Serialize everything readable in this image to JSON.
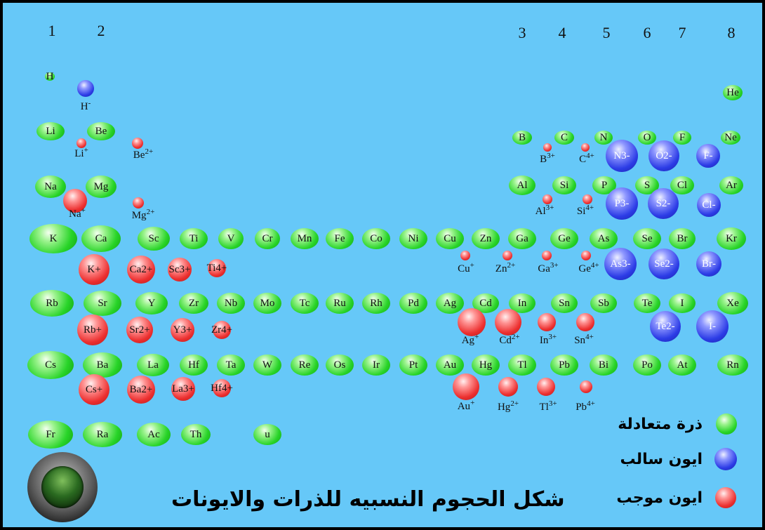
{
  "group_numbers": [
    "1",
    "2",
    "3",
    "4",
    "5",
    "6",
    "7",
    "8"
  ],
  "atoms": [
    "H",
    "He",
    "Li",
    "Be",
    "B",
    "C",
    "N",
    "O",
    "F",
    "Ne",
    "Na",
    "Mg",
    "Al",
    "Si",
    "P",
    "S",
    "Cl",
    "Ar",
    "K",
    "Ca",
    "Sc",
    "Ti",
    "V",
    "Cr",
    "Mn",
    "Fe",
    "Co",
    "Ni",
    "Cu",
    "Zn",
    "Ga",
    "Ge",
    "As",
    "Se",
    "Br",
    "Kr",
    "Rb",
    "Sr",
    "Y",
    "Zr",
    "Nb",
    "Mo",
    "Tc",
    "Ru",
    "Rh",
    "Pd",
    "Ag",
    "Cd",
    "In",
    "Sn",
    "Sb",
    "Te",
    "I",
    "Xe",
    "Cs",
    "Ba",
    "La",
    "Hf",
    "Ta",
    "W",
    "Re",
    "Os",
    "Ir",
    "Pt",
    "Au",
    "Hg",
    "Tl",
    "Pb",
    "Bi",
    "Po",
    "At",
    "Rn",
    "Fr",
    "Ra",
    "Ac",
    "Th",
    "u"
  ],
  "positive_ions": [
    "Li+",
    "Be2+",
    "Na+",
    "Mg2+",
    "B3+",
    "C4+",
    "Al3+",
    "Si4+",
    "K+",
    "Ca2+",
    "Sc3+",
    "Ti4+",
    "Cu+",
    "Zn2+",
    "Ga3+",
    "Ge4+",
    "Rb+",
    "Sr2+",
    "Y3+",
    "Zr4+",
    "Ag+",
    "Cd2+",
    "In3+",
    "Sn4+",
    "Cs+",
    "Ba2+",
    "La3+",
    "Hf4+",
    "Au+",
    "Hg2+",
    "Tl3+",
    "Pb4+"
  ],
  "negative_ions": [
    "H-",
    "N3-",
    "O2-",
    "F-",
    "P3-",
    "S2-",
    "Cl-",
    "As3-",
    "Se2-",
    "Br-",
    "Te2-",
    "I-"
  ],
  "legend": {
    "neutral": "ذرة متعادلة",
    "negative": "ايون سالب",
    "positive": "ايون موجب"
  },
  "title": "شكل الحجوم النسبيه للذرات والايونات",
  "colors": {
    "background": "#66c8f8",
    "neutral": "#28d428",
    "negative": "#2c3ce6",
    "positive": "#ec2f2f"
  }
}
